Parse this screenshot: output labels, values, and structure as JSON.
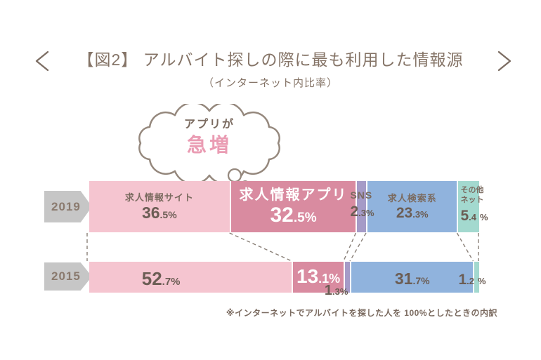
{
  "header": {
    "title": "【図2】 アルバイト探しの際に最も利用した情報源",
    "subtitle": "（インターネット内比率）",
    "prev_arrow": "<",
    "next_arrow": ">"
  },
  "annotation": {
    "bubble_line1": "アプリが",
    "bubble_line2": "急増"
  },
  "footnote": "※インターネットでアルバイトを探した人を 100%としたときの内訳",
  "colors": {
    "segment_job_site": "#f5c5d0",
    "segment_job_app": "#d98ba0",
    "segment_sns": "#a59bc7",
    "segment_job_search": "#90b3dd",
    "segment_other_net": "#a3d9cf",
    "year_arrow_gray": "#c6c6c6",
    "text_brown": "#7b6b60",
    "number_brown": "#6b5d54",
    "highlight_pink": "#ea9cb3",
    "dash_line": "#8a8078",
    "white_text": "#ffffff"
  },
  "chart_data": {
    "type": "bar",
    "variant": "horizontal_stacked",
    "unit": "%",
    "title": "【図2】アルバイト探しの際に最も利用した情報源（インターネット内比率）",
    "categories": [
      "求人情報サイト",
      "求人情報アプリ",
      "SNS",
      "求人検索系",
      "その他ネット"
    ],
    "series": [
      {
        "label": "2019",
        "values": [
          36.5,
          32.5,
          2.3,
          23.3,
          5.4
        ]
      },
      {
        "label": "2015",
        "values": [
          52.7,
          13.1,
          1.3,
          31.7,
          1.2
        ]
      }
    ],
    "xlim": [
      0,
      100
    ],
    "legend": "labels_inside_segments",
    "note": "※インターネットでアルバイトを探した人を 100%としたときの内訳"
  },
  "presentation": {
    "category_lines": [
      [
        "求人情報サイト"
      ],
      [
        "求人情報アプリ"
      ],
      [
        "SNS"
      ],
      [
        "求人検索系"
      ],
      [
        "その他",
        "ネット"
      ]
    ]
  }
}
